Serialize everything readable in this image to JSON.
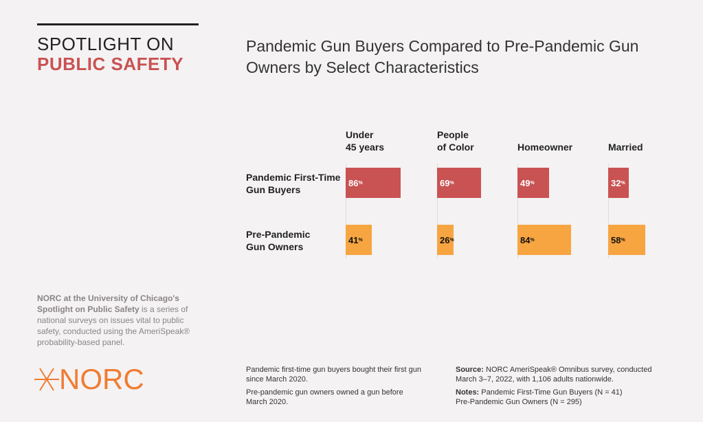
{
  "header": {
    "line1": "SPOTLIGHT ON",
    "line2": "PUBLIC SAFETY"
  },
  "about": {
    "bold": "NORC at the University of Chicago's Spotlight on Public Safety",
    "text": " is a series of national surveys on issues vital to public safety, conducted using the AmeriSpeak® probability-based panel."
  },
  "logo": {
    "text": "NORC"
  },
  "notes": {
    "def1": "Pandemic first-time gun buyers bought their first gun since March 2020.",
    "def2": "Pre-pandemic gun owners owned a gun before March 2020.",
    "source_label": "Source:",
    "source": " NORC AmeriSpeak® Omnibus survey, conducted March 3–7, 2022, with 1,106 adults nationwide.",
    "notes_label": "Notes:",
    "notes1": " Pandemic First-Time Gun Buyers (N = 41)",
    "notes2": "Pre-Pandemic Gun Owners (N = 295)"
  },
  "chart_data": {
    "type": "bar",
    "title": "Pandemic Gun Buyers Compared to Pre-Pandemic Gun Owners by Select Characteristics",
    "categories": [
      "Under 45 years",
      "People of Color",
      "Homeowner",
      "Married"
    ],
    "category_lines": [
      [
        "Under",
        "45 years"
      ],
      [
        "People",
        "of Color"
      ],
      [
        "",
        "Homeowner"
      ],
      [
        "",
        "Married"
      ]
    ],
    "unit": "%",
    "series": [
      {
        "name": "Pandemic First-Time Gun Buyers",
        "name_lines": [
          "Pandemic First-Time",
          "Gun Buyers"
        ],
        "color": "#c95252",
        "label_color": "#ffffff",
        "values": [
          86,
          69,
          49,
          32
        ]
      },
      {
        "name": "Pre-Pandemic Gun Owners",
        "name_lines": [
          "Pre-Pandemic",
          "Gun Owners"
        ],
        "color": "#f7a541",
        "label_color": "#111111",
        "values": [
          41,
          26,
          84,
          58
        ]
      }
    ],
    "xlim": [
      0,
      100
    ]
  }
}
